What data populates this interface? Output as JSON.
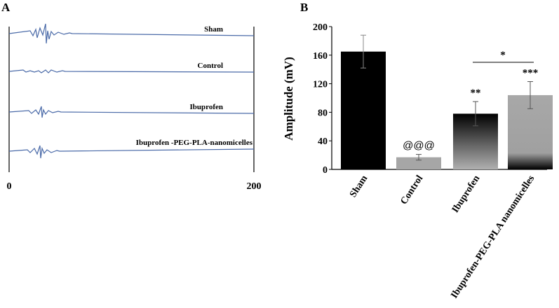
{
  "panel_a": {
    "letter": "A",
    "traces": [
      {
        "label": "Sham"
      },
      {
        "label": "Control"
      },
      {
        "label": "Ibuprofen"
      },
      {
        "label": "Ibuprofen -PEG-PLA-nanomicelles"
      }
    ],
    "x_start": "0",
    "x_end": "200",
    "line_color": "#4a6aa8"
  },
  "chart_data": {
    "type": "bar",
    "panel_letter": "B",
    "categories": [
      "Sham",
      "Control",
      "Ibuprofen",
      "Ibuprofen-PEG-PLA nanomicelles"
    ],
    "values": [
      165,
      17,
      78,
      104
    ],
    "errors": [
      23,
      4,
      17,
      19
    ],
    "annotations": [
      "",
      "@@@",
      "**",
      "***"
    ],
    "comparison": {
      "from": 2,
      "to": 3,
      "label": "*"
    },
    "ylabel": "Amplitude  (mV)",
    "ylim": [
      0,
      200
    ],
    "yticks": [
      0,
      40,
      80,
      120,
      160,
      200
    ],
    "bar_colors": [
      "#000000",
      "#a6a6a6",
      "gradient-black-bottom",
      "gradient-black-bottom"
    ]
  }
}
